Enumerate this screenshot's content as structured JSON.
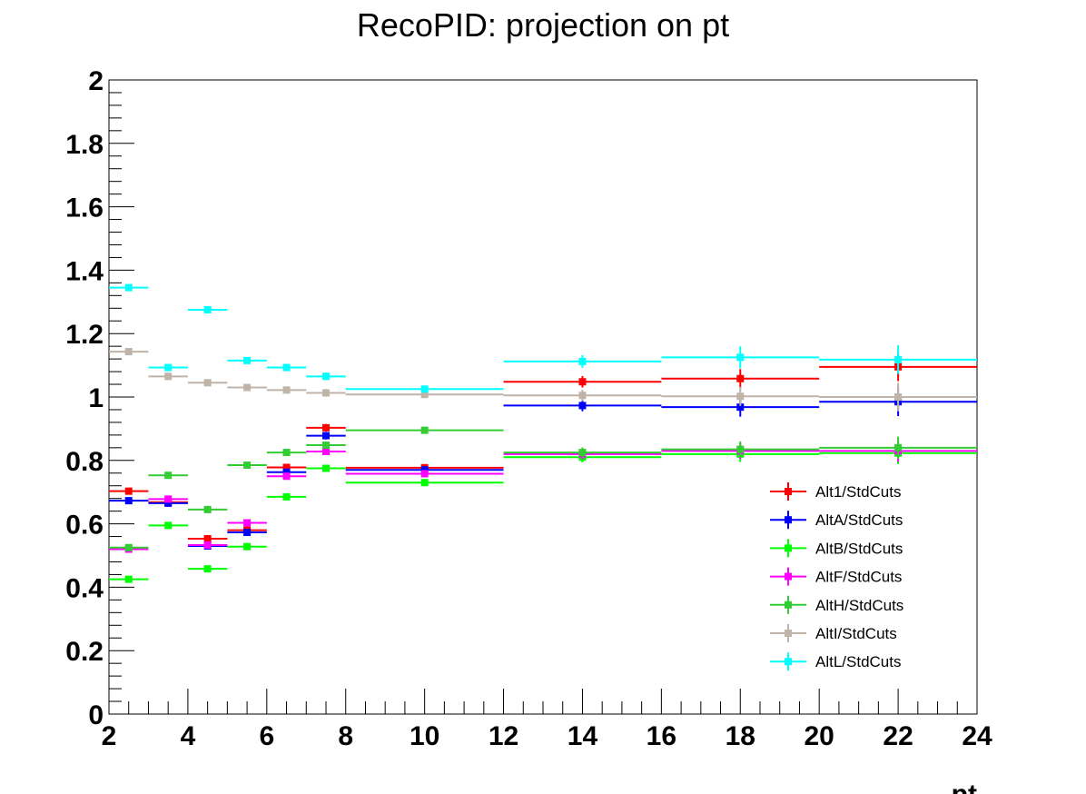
{
  "chart_data": {
    "type": "scatter",
    "title": "RecoPID: projection on pt",
    "xlabel": "pt",
    "ylabel": "",
    "xlim": [
      2,
      24
    ],
    "ylim": [
      0,
      2
    ],
    "x_ticks": [
      "2",
      "4",
      "6",
      "8",
      "10",
      "12",
      "14",
      "16",
      "18",
      "20",
      "22",
      "24"
    ],
    "y_ticks": [
      "0",
      "0.2",
      "0.4",
      "0.6",
      "0.8",
      "1",
      "1.2",
      "1.4",
      "1.6",
      "1.8",
      "2"
    ],
    "grid": false,
    "legend_position": "bottom-right",
    "bins": [
      {
        "x": 2.5,
        "xlo": 2,
        "xhi": 3
      },
      {
        "x": 3.5,
        "xlo": 3,
        "xhi": 4
      },
      {
        "x": 4.5,
        "xlo": 4,
        "xhi": 5
      },
      {
        "x": 5.5,
        "xlo": 5,
        "xhi": 6
      },
      {
        "x": 6.5,
        "xlo": 6,
        "xhi": 7
      },
      {
        "x": 7.5,
        "xlo": 7,
        "xhi": 8
      },
      {
        "x": 10,
        "xlo": 8,
        "xhi": 12
      },
      {
        "x": 14,
        "xlo": 12,
        "xhi": 16
      },
      {
        "x": 18,
        "xlo": 16,
        "xhi": 20
      },
      {
        "x": 22,
        "xlo": 20,
        "xhi": 24
      }
    ],
    "series": [
      {
        "name": "Alt1/StdCuts",
        "color": "#ff0000",
        "values": [
          0.703,
          0.668,
          0.553,
          0.58,
          0.778,
          0.903,
          0.777,
          1.048,
          1.058,
          1.095
        ],
        "errors": [
          0.006,
          0.006,
          0.008,
          0.008,
          0.007,
          0.012,
          0.008,
          0.018,
          0.03,
          0.045
        ]
      },
      {
        "name": "AltA/StdCuts",
        "color": "#0000ff",
        "values": [
          0.673,
          0.665,
          0.53,
          0.573,
          0.763,
          0.878,
          0.77,
          0.973,
          0.968,
          0.985
        ],
        "errors": [
          0.006,
          0.006,
          0.008,
          0.008,
          0.007,
          0.012,
          0.008,
          0.018,
          0.03,
          0.045
        ]
      },
      {
        "name": "AltB/StdCuts",
        "color": "#00ff00",
        "values": [
          0.425,
          0.595,
          0.458,
          0.528,
          0.685,
          0.775,
          0.73,
          0.81,
          0.82,
          0.823
        ],
        "errors": [
          0.005,
          0.005,
          0.007,
          0.007,
          0.006,
          0.01,
          0.007,
          0.016,
          0.025,
          0.035
        ]
      },
      {
        "name": "AltF/StdCuts",
        "color": "#ff00ff",
        "values": [
          0.52,
          0.678,
          0.533,
          0.603,
          0.75,
          0.828,
          0.758,
          0.82,
          0.83,
          0.83
        ],
        "errors": [
          0.005,
          0.006,
          0.008,
          0.008,
          0.007,
          0.011,
          0.008,
          0.016,
          0.025,
          0.035
        ]
      },
      {
        "name": "AltH/StdCuts",
        "color": "#33cc33",
        "values": [
          0.525,
          0.753,
          0.645,
          0.785,
          0.825,
          0.848,
          0.895,
          0.825,
          0.835,
          0.84
        ],
        "errors": [
          0.005,
          0.006,
          0.008,
          0.008,
          0.007,
          0.011,
          0.008,
          0.016,
          0.025,
          0.035
        ]
      },
      {
        "name": "AltI/StdCuts",
        "color": "#c0b3a8",
        "values": [
          1.143,
          1.065,
          1.045,
          1.03,
          1.022,
          1.013,
          1.008,
          1.005,
          1.002,
          1.0
        ],
        "errors": [
          0.008,
          0.008,
          0.009,
          0.009,
          0.008,
          0.012,
          0.009,
          0.018,
          0.03,
          0.045
        ]
      },
      {
        "name": "AltL/StdCuts",
        "color": "#00ffff",
        "values": [
          1.345,
          1.093,
          1.275,
          1.115,
          1.093,
          1.065,
          1.025,
          1.112,
          1.125,
          1.118
        ],
        "errors": [
          0.008,
          0.008,
          0.01,
          0.009,
          0.008,
          0.012,
          0.009,
          0.02,
          0.035,
          0.045
        ]
      }
    ]
  }
}
